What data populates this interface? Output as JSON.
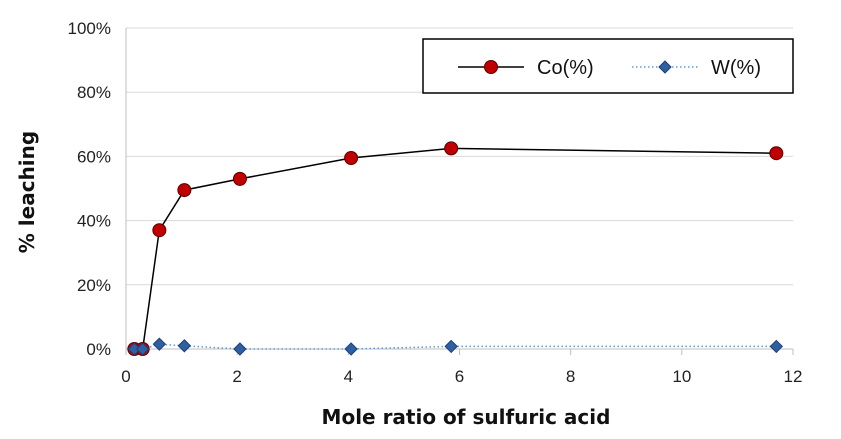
{
  "chart_data": {
    "type": "line",
    "xlabel": "Mole ratio of sulfuric acid",
    "ylabel": "% leaching",
    "xlim": [
      0,
      12
    ],
    "ylim": [
      0,
      100
    ],
    "x_ticks": [
      "0",
      "2",
      "4",
      "6",
      "8",
      "10",
      "12"
    ],
    "y_ticks": [
      "0%",
      "20%",
      "40%",
      "60%",
      "80%",
      "100%"
    ],
    "grid": {
      "horizontal": true,
      "vertical": false
    },
    "legend": "top-right",
    "series": [
      {
        "name": "Co(%)",
        "marker": "circle",
        "line_style": "solid",
        "line_color": "#000000",
        "marker_color": "#c00000",
        "points": [
          [
            0.15,
            0
          ],
          [
            0.3,
            0
          ],
          [
            0.6,
            37
          ],
          [
            1.05,
            49.5
          ],
          [
            2.05,
            53
          ],
          [
            4.05,
            59.5
          ],
          [
            5.85,
            62.5
          ],
          [
            11.7,
            61
          ]
        ]
      },
      {
        "name": "W(%)",
        "marker": "diamond",
        "line_style": "dotted",
        "line_color": "#5b9bd5",
        "marker_color": "#2e5fa3",
        "points": [
          [
            0.15,
            0
          ],
          [
            0.3,
            0
          ],
          [
            0.6,
            1.5
          ],
          [
            1.05,
            1
          ],
          [
            2.05,
            0
          ],
          [
            4.05,
            0
          ],
          [
            5.85,
            0.8
          ],
          [
            11.7,
            0.8
          ]
        ]
      }
    ]
  }
}
